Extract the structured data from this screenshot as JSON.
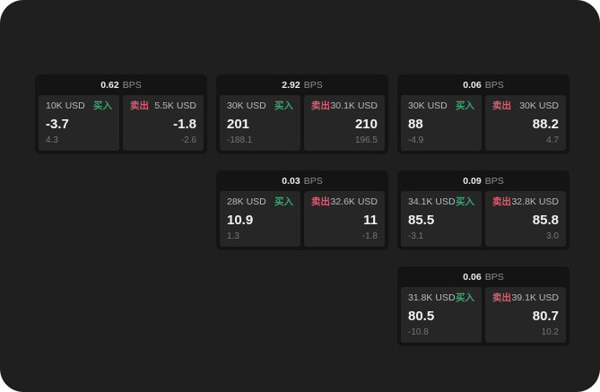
{
  "labels": {
    "bps_unit": "BPS",
    "buy": "买入",
    "sell": "卖出"
  },
  "colors": {
    "surface": "#1f1f1f",
    "card-bg": "#141414",
    "panel-bg": "#262626",
    "accent-green": "#36a56e",
    "accent-red": "#d75c72"
  },
  "cards": [
    {
      "bps": "0.62",
      "buy": {
        "amount": "10K USD",
        "price": "-3.7",
        "sub": "4.3"
      },
      "sell": {
        "amount": "5.5K USD",
        "price": "-1.8",
        "sub": "-2.6"
      }
    },
    {
      "bps": "2.92",
      "buy": {
        "amount": "30K USD",
        "price": "201",
        "sub": "-188.1"
      },
      "sell": {
        "amount": "30.1K USD",
        "price": "210",
        "sub": "196.5"
      }
    },
    {
      "bps": "0.06",
      "buy": {
        "amount": "30K USD",
        "price": "88",
        "sub": "-4.9"
      },
      "sell": {
        "amount": "30K USD",
        "price": "88.2",
        "sub": "4.7"
      }
    },
    {
      "bps": "0.03",
      "buy": {
        "amount": "28K USD",
        "price": "10.9",
        "sub": "1.3"
      },
      "sell": {
        "amount": "32.6K USD",
        "price": "11",
        "sub": "-1.8"
      }
    },
    {
      "bps": "0.09",
      "buy": {
        "amount": "34.1K USD",
        "price": "85.5",
        "sub": "-3.1"
      },
      "sell": {
        "amount": "32.8K USD",
        "price": "85.8",
        "sub": "3.0"
      }
    },
    {
      "bps": "0.06",
      "buy": {
        "amount": "31.8K USD",
        "price": "80.5",
        "sub": "-10.8"
      },
      "sell": {
        "amount": "39.1K USD",
        "price": "80.7",
        "sub": "10.2"
      }
    }
  ]
}
